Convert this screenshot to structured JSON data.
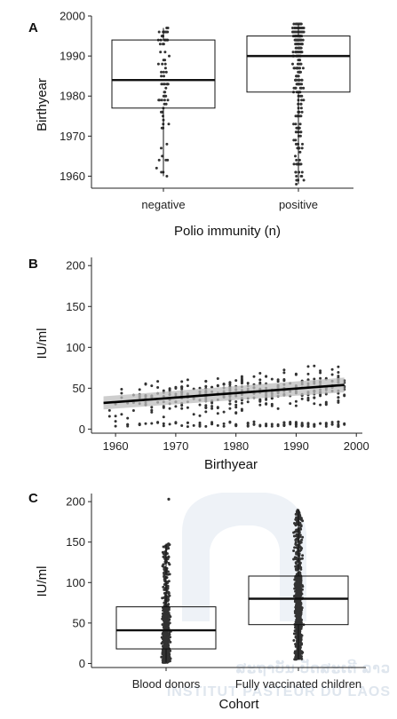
{
  "watermark": {
    "line1": "ສະຖາບັນ ປັດສະເຕີ ລາວ",
    "line2": "INSTITUT PASTEUR DU LAOS"
  },
  "chart_data": [
    {
      "panel": "A",
      "type": "boxplot",
      "xlabel": "Polio immunity (n)",
      "ylabel": "Birthyear",
      "ylim": [
        1957,
        2000
      ],
      "yticks": [
        1960,
        1970,
        1980,
        1990,
        2000
      ],
      "categories": [
        "negative",
        "positive"
      ],
      "boxes": [
        {
          "name": "negative",
          "whisker_low": 1960,
          "q1": 1977,
          "median": 1984,
          "q3": 1994,
          "whisker_high": 1997,
          "n_points": 80
        },
        {
          "name": "positive",
          "whisker_low": 1958,
          "q1": 1981,
          "median": 1990,
          "q3": 1995,
          "whisker_high": 1998,
          "n_points": 320
        }
      ]
    },
    {
      "panel": "B",
      "type": "scatter",
      "xlabel": "Birthyear",
      "ylabel": "IU/ml",
      "xlim": [
        1956,
        2001
      ],
      "ylim": [
        -5,
        210
      ],
      "xticks": [
        1960,
        1970,
        1980,
        1990,
        2000
      ],
      "yticks": [
        0,
        50,
        100,
        150,
        200
      ],
      "trend": {
        "x": [
          1958,
          1998
        ],
        "y": [
          32,
          54
        ],
        "ci_start": [
          24,
          40
        ],
        "ci_end": [
          45,
          63
        ]
      },
      "n_points": 480
    },
    {
      "panel": "C",
      "type": "boxplot",
      "xlabel": "Cohort",
      "ylabel": "IU/ml",
      "ylim": [
        -5,
        210
      ],
      "yticks": [
        0,
        50,
        100,
        150,
        200
      ],
      "categories": [
        "Blood donors",
        "Fully vaccinated children"
      ],
      "boxes": [
        {
          "name": "Blood donors",
          "whisker_low": 1,
          "q1": 18,
          "median": 41,
          "q3": 70,
          "whisker_high": 148,
          "outlier_high": 203,
          "n_points": 600
        },
        {
          "name": "Fully vaccinated children",
          "whisker_low": 5,
          "q1": 48,
          "median": 80,
          "q3": 108,
          "whisker_high": 190,
          "n_points": 700
        }
      ]
    }
  ]
}
